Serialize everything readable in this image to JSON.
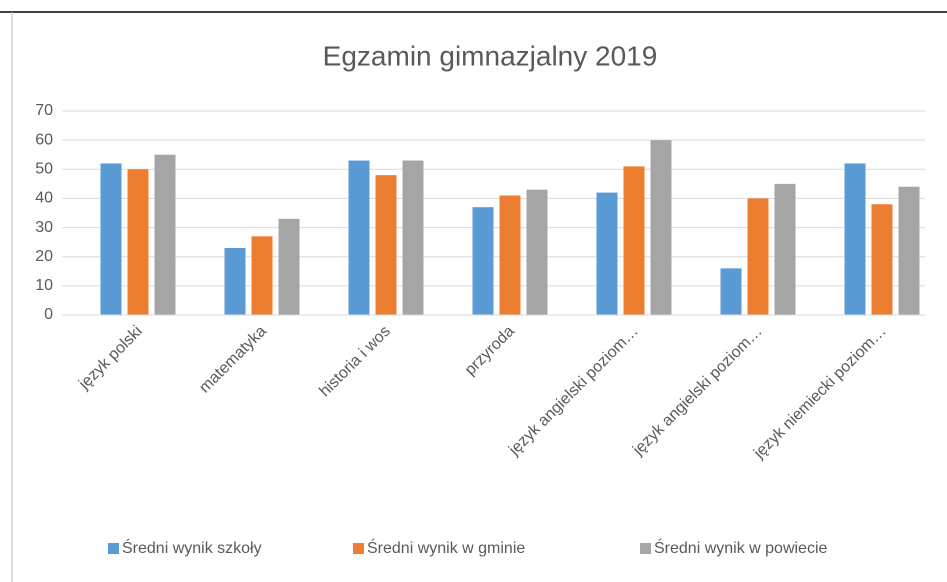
{
  "chart_data": {
    "type": "bar",
    "title": "Egzamin gimnazjalny 2019",
    "categories": [
      "język polski",
      "matematyka",
      "historia i wos",
      "przyroda",
      "język angielski poziom…",
      "język angielski poziom…",
      "język niemiecki poziom…"
    ],
    "series": [
      {
        "name": "Średni wynik szkoły",
        "color": "#5b9bd5",
        "values": [
          52,
          23,
          53,
          37,
          42,
          16,
          52
        ]
      },
      {
        "name": "Średni wynik  w gminie",
        "color": "#ed7d31",
        "values": [
          50,
          27,
          48,
          41,
          51,
          40,
          38
        ]
      },
      {
        "name": "Średni wynik w powiecie",
        "color": "#a5a5a5",
        "values": [
          55,
          33,
          53,
          43,
          60,
          45,
          44
        ]
      }
    ],
    "ylim": [
      0,
      70
    ],
    "yticks": [
      0,
      10,
      20,
      30,
      40,
      50,
      60,
      70
    ],
    "grid": true,
    "legend": "bottom"
  }
}
